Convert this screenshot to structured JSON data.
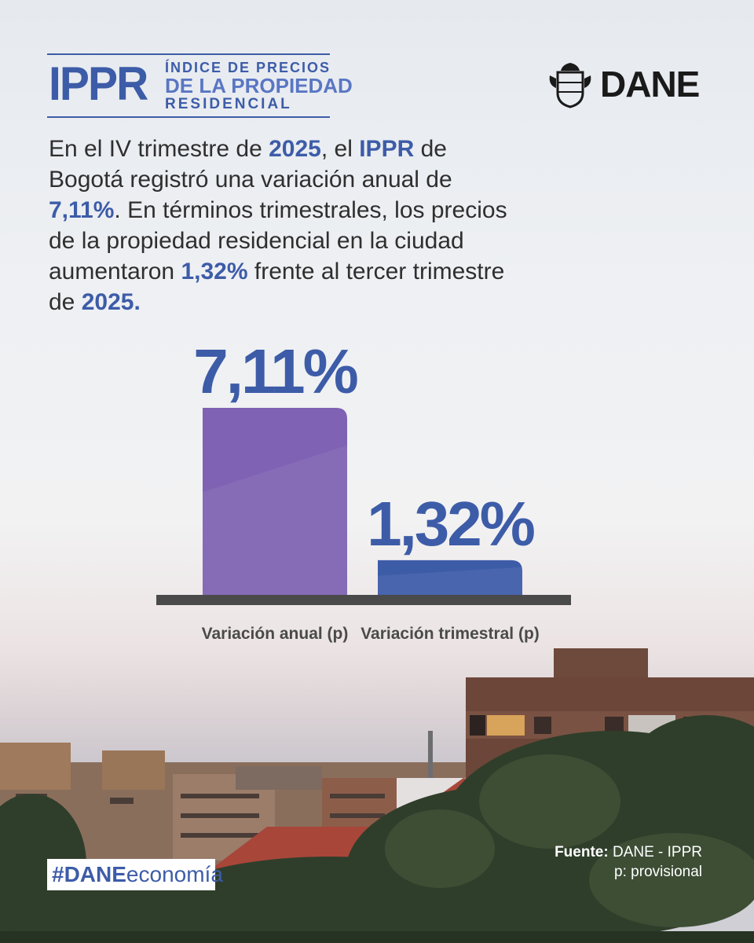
{
  "header": {
    "brand_short": "IPPR",
    "brand_line1": "ÍNDICE DE PRECIOS",
    "brand_line2": "DE LA PROPIEDAD",
    "brand_line3": "RESIDENCIAL",
    "org": "DANE"
  },
  "lead": {
    "p1": "En el IV trimestre de ",
    "y1": "2025",
    "p2": ", el ",
    "ippr": "IPPR",
    "p3": " de Bogotá registró una variación anual de ",
    "annual": "7,11%",
    "p4": ". En términos trimestrales, los precios de la propiedad residencial en la ciudad aumentaron ",
    "quarterly": "1,32%",
    "p5": " frente al tercer trimestre de ",
    "y2": "2025."
  },
  "chart_data": {
    "type": "bar",
    "categories": [
      "Variación anual (p)",
      "Variación trimestral (p)"
    ],
    "values": [
      7.11,
      1.32
    ],
    "value_labels": [
      "7,11%",
      "1,32%"
    ],
    "colors": [
      "#7f62b3",
      "#3d5ca8"
    ],
    "title": "",
    "xlabel": "",
    "ylabel": "",
    "ylim": [
      0,
      7.11
    ]
  },
  "footer": {
    "hashtag_bold": "#DANE",
    "hashtag_rest": "economía",
    "source_label": "Fuente:",
    "source_value": "DANE - IPPR",
    "note": "p: provisional"
  }
}
